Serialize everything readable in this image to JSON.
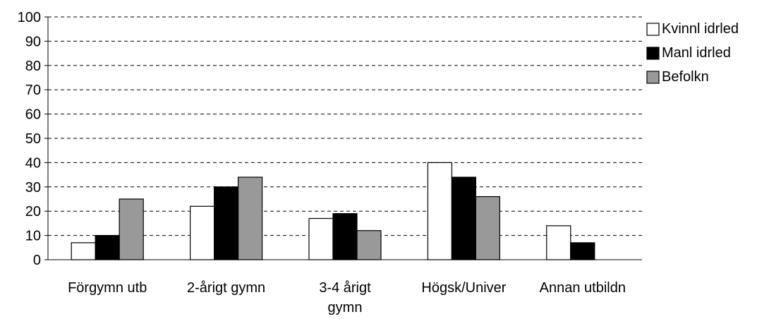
{
  "chart_data": {
    "type": "bar",
    "categories": [
      [
        "Förgymn utb"
      ],
      [
        "2-årigt gymn"
      ],
      [
        "3-4 årigt",
        "gymn"
      ],
      [
        "Högsk/Univer"
      ],
      [
        "Annan utbildn"
      ]
    ],
    "series": [
      {
        "name": "Kvinnl idrled",
        "color": "#ffffff",
        "values": [
          7,
          22,
          17,
          40,
          14
        ]
      },
      {
        "name": "Manl idrled",
        "color": "#000000",
        "values": [
          10,
          30,
          19,
          34,
          7
        ]
      },
      {
        "name": "Befolkn",
        "color": "#999999",
        "values": [
          25,
          34,
          12,
          26,
          0
        ]
      }
    ],
    "ylim": [
      0,
      100
    ],
    "yticks": [
      0,
      10,
      20,
      30,
      40,
      50,
      60,
      70,
      80,
      90,
      100
    ],
    "grid": true,
    "grid_style": "dashed",
    "legend_position": "right"
  }
}
